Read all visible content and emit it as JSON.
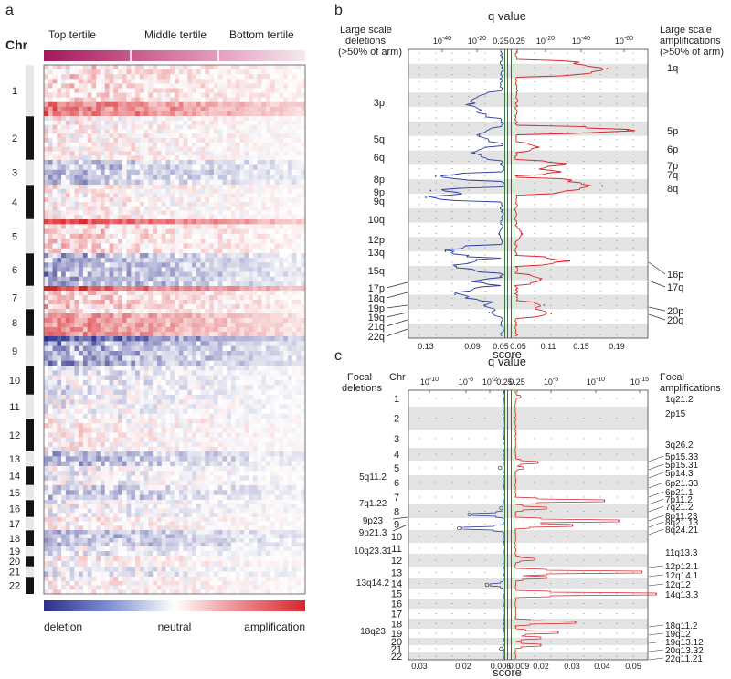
{
  "panels": {
    "a": {
      "letter": "a",
      "chr_label": "Chr",
      "tertiles": [
        "Top tertile",
        "Middle tertile",
        "Bottom tertile"
      ],
      "chromosomes": [
        "1",
        "2",
        "3",
        "4",
        "5",
        "6",
        "7",
        "8",
        "9",
        "10",
        "11",
        "12",
        "13",
        "14",
        "15",
        "16",
        "17",
        "18",
        "19",
        "20",
        "21",
        "22"
      ],
      "legend": {
        "left": "deletion",
        "mid": "neutral",
        "right": "amplification"
      },
      "colors": {
        "deletion": "#2b2f8c",
        "neutral": "#ffffff",
        "amplification": "#d7262b"
      }
    },
    "b": {
      "letter": "b",
      "top_axis_title": "q value",
      "bottom_axis_title": "score",
      "left_header": [
        "Large scale",
        "deletions",
        "(>50% of arm)"
      ],
      "right_header": [
        "Large scale",
        "amplifications",
        "(>50% of arm)"
      ],
      "left_ticks_q": [
        {
          "base": "10",
          "exp": "-40"
        },
        {
          "base": "10",
          "exp": "-20"
        },
        {
          "base": "0.25",
          "exp": ""
        }
      ],
      "right_ticks_q": [
        {
          "base": "0.25",
          "exp": ""
        },
        {
          "base": "10",
          "exp": "-20"
        },
        {
          "base": "10",
          "exp": "-40"
        },
        {
          "base": "10",
          "exp": "-60"
        }
      ],
      "left_ticks_score": [
        "0.13",
        "0.09",
        "0.05"
      ],
      "right_ticks_score": [
        "0.05",
        "0.11",
        "0.15",
        "0.19"
      ],
      "deletion_labels": [
        "3p",
        "5q",
        "6q",
        "8p",
        "9p",
        "9q",
        "10q",
        "12p",
        "13q",
        "15q",
        "17p",
        "18q",
        "19p",
        "19q",
        "21q",
        "22q"
      ],
      "amplification_labels": [
        "1q",
        "5p",
        "6p",
        "7p",
        "7q",
        "8q",
        "16p",
        "17q",
        "20p",
        "20q"
      ]
    },
    "c": {
      "letter": "c",
      "top_axis_title": "q value",
      "bottom_axis_title": "score",
      "chr_label": "Chr",
      "left_header": [
        "Focal",
        "deletions"
      ],
      "right_header": [
        "Focal",
        "amplifications"
      ],
      "left_ticks_q": [
        {
          "base": "10",
          "exp": "-10"
        },
        {
          "base": "10",
          "exp": "-6"
        },
        {
          "base": "10",
          "exp": "-2"
        },
        {
          "base": "0.25",
          "exp": ""
        }
      ],
      "right_ticks_q": [
        {
          "base": "0.25",
          "exp": ""
        },
        {
          "base": "10",
          "exp": "-5"
        },
        {
          "base": "10",
          "exp": "-10"
        },
        {
          "base": "10",
          "exp": "-15"
        }
      ],
      "left_ticks_score": [
        "0.03",
        "0.02",
        "0.006"
      ],
      "right_ticks_score": [
        "0.009",
        "0.02",
        "0.03",
        "0.04",
        "0.05"
      ],
      "chromosomes": [
        "1",
        "2",
        "3",
        "4",
        "5",
        "6",
        "7",
        "8",
        "9",
        "10",
        "11",
        "12",
        "13",
        "14",
        "15",
        "16",
        "17",
        "18",
        "19",
        "20",
        "21",
        "22"
      ],
      "deletion_labels": [
        "5q11.2",
        "7q1.22",
        "9p23",
        "9p21.3",
        "10q23.31",
        "13q14.2",
        "18q23"
      ],
      "amplification_labels": [
        "1q21.2",
        "2p15",
        "3q26.2",
        "5p15.33",
        "5p15.31",
        "5p14.3",
        "6p21.33",
        "6p21.1",
        "7p11.2",
        "7q21.2",
        "8p11.23",
        "8q21.13",
        "8q24.21",
        "11q13.3",
        "12p12.1",
        "12q14.1",
        "12q12",
        "14q13.3",
        "18q11.2",
        "19q12",
        "19q13.12",
        "20q13.32",
        "22q11.21"
      ]
    }
  },
  "chart_data": [
    {
      "type": "heatmap",
      "panel": "a",
      "rows": [
        "1",
        "2",
        "3",
        "4",
        "5",
        "6",
        "7",
        "8",
        "9",
        "10",
        "11",
        "12",
        "13",
        "14",
        "15",
        "16",
        "17",
        "18",
        "19",
        "20",
        "21",
        "22"
      ],
      "column_groups": [
        "Top tertile",
        "Middle tertile",
        "Bottom tertile"
      ],
      "color_scale": [
        "deletion",
        "neutral",
        "amplification"
      ]
    },
    {
      "type": "line",
      "panel": "b",
      "series": [
        {
          "name": "deletions",
          "values": [
            [
              "3p",
              0.085
            ],
            [
              "5q",
              0.075
            ],
            [
              "6q",
              0.08
            ],
            [
              "8p",
              0.12
            ],
            [
              "9p",
              0.125
            ],
            [
              "9q",
              0.13
            ],
            [
              "12p",
              0.055
            ],
            [
              "13q",
              0.11
            ],
            [
              "15q",
              0.1
            ],
            [
              "17p",
              0.08
            ],
            [
              "18q",
              0.1
            ],
            [
              "19p",
              0.07
            ],
            [
              "19q",
              0.065
            ]
          ]
        },
        {
          "name": "amplifications",
          "values": [
            [
              "1q",
              0.177
            ],
            [
              "5p",
              0.205
            ],
            [
              "6p",
              0.08
            ],
            [
              "7p",
              0.118
            ],
            [
              "7q",
              0.11
            ],
            [
              "8q",
              0.17
            ],
            [
              "12p",
              0.06
            ],
            [
              "16p",
              0.125
            ],
            [
              "17q",
              0.085
            ],
            [
              "20p",
              0.09
            ],
            [
              "20q",
              0.1
            ]
          ]
        }
      ]
    },
    {
      "type": "line",
      "panel": "c",
      "series": [
        {
          "name": "deletions",
          "values": [
            [
              "5q11.2",
              0.0063
            ],
            [
              "7q1.22",
              0.006
            ],
            [
              "9p23",
              0.015
            ],
            [
              "9p21.3",
              0.018
            ],
            [
              "10q23.31",
              0.003
            ],
            [
              "13q14.2",
              0.01
            ],
            [
              "18q23",
              0.006
            ]
          ]
        },
        {
          "name": "amplifications",
          "values": [
            [
              "5p15.33",
              0.017
            ],
            [
              "7q21.2",
              0.04
            ],
            [
              "8q21.13",
              0.045
            ],
            [
              "8q24.21",
              0.029
            ],
            [
              "11q13.3",
              0.016
            ],
            [
              "12q14.1",
              0.053
            ],
            [
              "14q13.3",
              0.058
            ],
            [
              "18q11.2",
              0.03
            ],
            [
              "19q12",
              0.024
            ],
            [
              "20q13.32",
              0.018
            ]
          ]
        }
      ]
    }
  ]
}
